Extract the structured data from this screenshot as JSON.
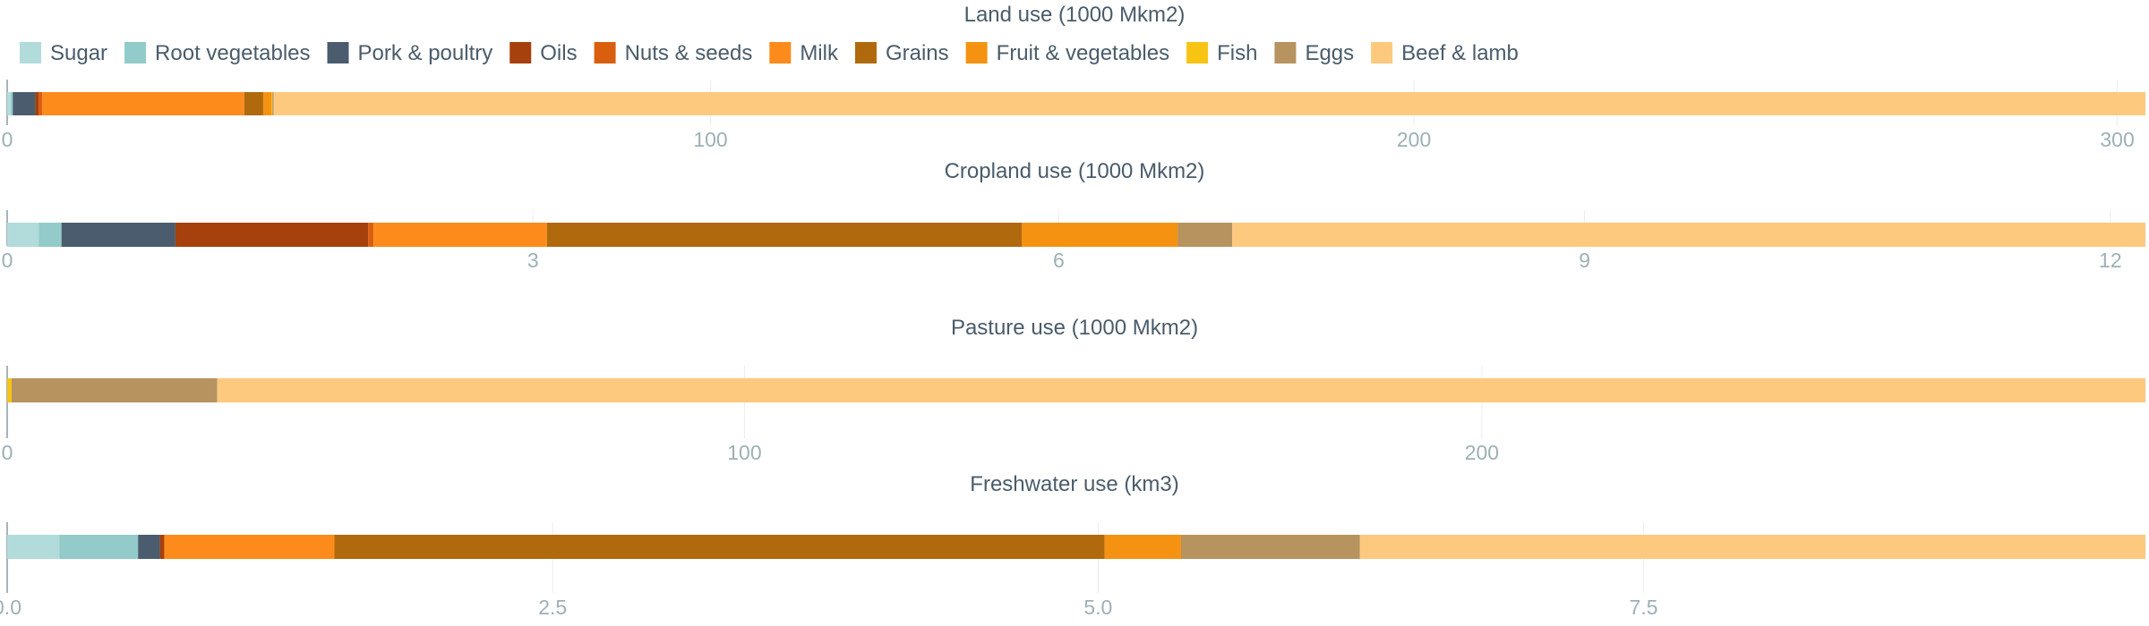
{
  "chart_data": {
    "type": "bar",
    "orientation": "horizontal",
    "stacked": true,
    "legend": {
      "position": "top-left",
      "entries": [
        {
          "name": "Sugar",
          "color": "#b2dcdb"
        },
        {
          "name": "Root vegetables",
          "color": "#92cbc9"
        },
        {
          "name": "Pork & poultry",
          "color": "#4a5c6e"
        },
        {
          "name": "Oils",
          "color": "#a6400c"
        },
        {
          "name": "Nuts & seeds",
          "color": "#d95f0e"
        },
        {
          "name": "Milk",
          "color": "#fd8b1b"
        },
        {
          "name": "Grains",
          "color": "#b0690c"
        },
        {
          "name": "Fruit & vegetables",
          "color": "#f59211"
        },
        {
          "name": "Fish",
          "color": "#f8c414"
        },
        {
          "name": "Eggs",
          "color": "#b6935f"
        },
        {
          "name": "Beef & lamb",
          "color": "#fdc97e"
        }
      ]
    },
    "panels": [
      {
        "title": "Land use (1000 Mkm2)",
        "xlim": [
          0,
          304
        ],
        "ticks": [
          0,
          100,
          200,
          300
        ],
        "tick_labels": [
          "0",
          "100",
          "200",
          "300"
        ],
        "grid": true,
        "segments": [
          {
            "series": "Sugar",
            "value": 0.5
          },
          {
            "series": "Root vegetables",
            "value": 0.3
          },
          {
            "series": "Pork & poultry",
            "value": 3.2
          },
          {
            "series": "Oils",
            "value": 0.5
          },
          {
            "series": "Nuts & seeds",
            "value": 0.5
          },
          {
            "series": "Milk",
            "value": 28.7
          },
          {
            "series": "Grains",
            "value": 2.7
          },
          {
            "series": "Fruit & vegetables",
            "value": 1.2
          },
          {
            "series": "Fish",
            "value": 0.1
          },
          {
            "series": "Eggs",
            "value": 0.2
          },
          {
            "series": "Beef & lamb",
            "value": 266.1
          }
        ]
      },
      {
        "title": "Cropland use (1000 Mkm2)",
        "xlim": [
          0,
          12.2
        ],
        "ticks": [
          0,
          3,
          6,
          9,
          12
        ],
        "tick_labels": [
          "0",
          "3",
          "6",
          "9",
          "12"
        ],
        "grid": true,
        "segments": [
          {
            "series": "Sugar",
            "value": 0.18
          },
          {
            "series": "Root vegetables",
            "value": 0.13
          },
          {
            "series": "Pork & poultry",
            "value": 0.65
          },
          {
            "series": "Oils",
            "value": 1.1
          },
          {
            "series": "Nuts & seeds",
            "value": 0.03
          },
          {
            "series": "Milk",
            "value": 0.99
          },
          {
            "series": "Grains",
            "value": 2.71
          },
          {
            "series": "Fruit & vegetables",
            "value": 0.89
          },
          {
            "series": "Fish",
            "value": 0.0
          },
          {
            "series": "Eggs",
            "value": 0.31
          },
          {
            "series": "Beef & lamb",
            "value": 5.21
          }
        ]
      },
      {
        "title": "Pasture use (1000 Mkm2)",
        "xlim": [
          0,
          290
        ],
        "ticks": [
          0,
          100,
          200
        ],
        "tick_labels": [
          "0",
          "100",
          "200"
        ],
        "grid": true,
        "segments": [
          {
            "series": "Sugar",
            "value": 0.0
          },
          {
            "series": "Root vegetables",
            "value": 0.0
          },
          {
            "series": "Pork & poultry",
            "value": 0.0
          },
          {
            "series": "Oils",
            "value": 0.0
          },
          {
            "series": "Nuts & seeds",
            "value": 0.0
          },
          {
            "series": "Milk",
            "value": 0.0
          },
          {
            "series": "Grains",
            "value": 0.0
          },
          {
            "series": "Fruit & vegetables",
            "value": 0.0
          },
          {
            "series": "Fish",
            "value": 0.6
          },
          {
            "series": "Eggs",
            "value": 27.9
          },
          {
            "series": "Beef & lamb",
            "value": 261.5
          }
        ]
      },
      {
        "title": "Freshwater use (km3)",
        "xlim": [
          0,
          9.8
        ],
        "ticks": [
          0.0,
          2.5,
          5.0,
          7.5
        ],
        "tick_labels": [
          "0.0",
          "2.5",
          "5.0",
          "7.5"
        ],
        "grid": true,
        "segments": [
          {
            "series": "Sugar",
            "value": 0.24
          },
          {
            "series": "Root vegetables",
            "value": 0.36
          },
          {
            "series": "Pork & poultry",
            "value": 0.1
          },
          {
            "series": "Oils",
            "value": 0.02
          },
          {
            "series": "Nuts & seeds",
            "value": 0.0
          },
          {
            "series": "Milk",
            "value": 0.78
          },
          {
            "series": "Grains",
            "value": 3.53
          },
          {
            "series": "Fruit & vegetables",
            "value": 0.35
          },
          {
            "series": "Fish",
            "value": 0.0
          },
          {
            "series": "Eggs",
            "value": 0.82
          },
          {
            "series": "Beef & lamb",
            "value": 3.6
          }
        ]
      }
    ]
  }
}
